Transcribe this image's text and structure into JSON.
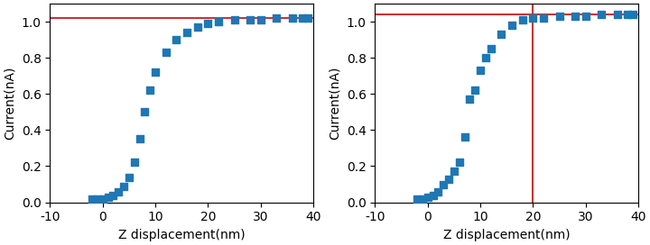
{
  "chart_data": [
    {
      "type": "scatter",
      "x": [
        -2,
        -1,
        0,
        1,
        2,
        3,
        4,
        5,
        6,
        7,
        8,
        9,
        10,
        12,
        14,
        16,
        18,
        20,
        22,
        25,
        28,
        30,
        33,
        36,
        38,
        39
      ],
      "values": [
        0.02,
        0.02,
        0.02,
        0.03,
        0.04,
        0.06,
        0.09,
        0.14,
        0.22,
        0.35,
        0.5,
        0.62,
        0.72,
        0.83,
        0.9,
        0.94,
        0.97,
        0.99,
        1.0,
        1.01,
        1.01,
        1.01,
        1.02,
        1.02,
        1.02,
        1.02
      ],
      "x_label": "Z displacement(nm)",
      "y_label": "Current(nA)",
      "xlim": [
        -10,
        40
      ],
      "xticks": [
        -10,
        0,
        10,
        20,
        30,
        40
      ],
      "ylim": [
        0,
        1.1
      ],
      "yticks": [
        0.0,
        0.2,
        0.4,
        0.6,
        0.8,
        1.0
      ],
      "marker": "square",
      "hline": {
        "value": 1.02,
        "color": "#cc3333"
      }
    },
    {
      "type": "scatter",
      "x": [
        -2,
        -1,
        0,
        1,
        2,
        3,
        4,
        5,
        6,
        7,
        8,
        9,
        10,
        11,
        12,
        14,
        16,
        18,
        20,
        22,
        25,
        28,
        30,
        33,
        36,
        38,
        39
      ],
      "values": [
        0.02,
        0.02,
        0.03,
        0.04,
        0.06,
        0.1,
        0.13,
        0.17,
        0.22,
        0.36,
        0.57,
        0.62,
        0.73,
        0.8,
        0.85,
        0.93,
        0.98,
        1.01,
        1.02,
        1.02,
        1.03,
        1.03,
        1.03,
        1.04,
        1.04,
        1.04,
        1.04
      ],
      "x_label": "Z displacement(nm)",
      "y_label": "Current(nA)",
      "xlim": [
        -10,
        40
      ],
      "xticks": [
        -10,
        0,
        10,
        20,
        30,
        40
      ],
      "ylim": [
        0,
        1.1
      ],
      "yticks": [
        0.0,
        0.2,
        0.4,
        0.6,
        0.8,
        1.0
      ],
      "marker": "square",
      "hline": {
        "value": 1.04,
        "color": "#cc3333"
      },
      "vline": {
        "value": 20,
        "color": "#cc3333"
      }
    }
  ]
}
